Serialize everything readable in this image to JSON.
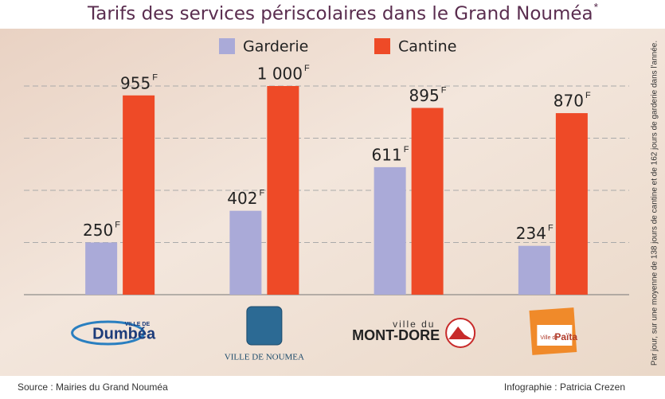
{
  "chart_data": {
    "type": "bar",
    "title": "Tarifs des services périscolaires dans le Grand Nouméa",
    "title_mark": "*",
    "categories": [
      "Dumbéa",
      "VILLE DE NOUMEA",
      "MONT-DORE",
      "Païta"
    ],
    "category_prefixes": [
      "VILLE DE",
      null,
      "ville du",
      "Ville de"
    ],
    "value_unit": "F",
    "series": [
      {
        "name": "Garderie",
        "color": "#aaaad8",
        "values": [
          250,
          402,
          611,
          234
        ]
      },
      {
        "name": "Cantine",
        "color": "#ee4a27",
        "values": [
          955,
          1000,
          895,
          870
        ],
        "value_labels": [
          "955",
          "1 000",
          "895",
          "870"
        ]
      }
    ],
    "ylim": [
      0,
      1000
    ],
    "yticks": [
      0,
      250,
      500,
      750,
      1000
    ],
    "grid": true,
    "footnote": "Par jour, sur une moyenne de 138 jours de cantine et de 162 jours de garderie dans l'année.",
    "source": "Source : Mairies du Grand Nouméa",
    "credit": "Infographie : Patricia Crezen"
  }
}
